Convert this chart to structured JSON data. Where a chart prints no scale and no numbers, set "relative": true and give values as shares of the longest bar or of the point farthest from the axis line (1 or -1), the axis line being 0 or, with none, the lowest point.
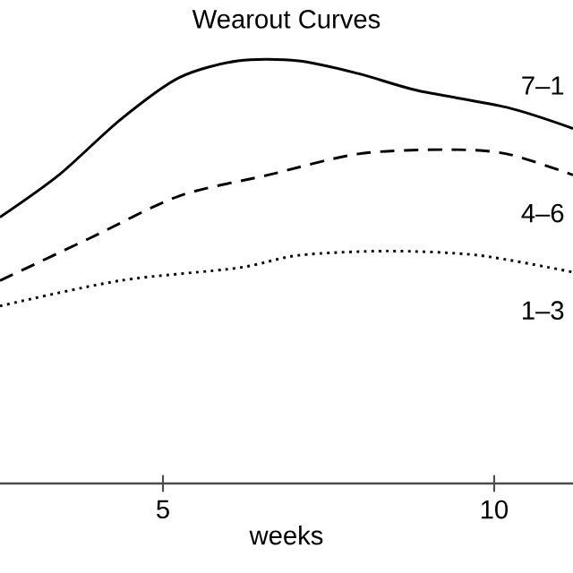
{
  "chart_data": {
    "type": "line",
    "title": "Wearout Curves",
    "xlabel": "weeks",
    "relative": true,
    "xlim": [
      2.54,
      11.19
    ],
    "xticks": [
      5,
      10
    ],
    "series": [
      {
        "name": "7–1",
        "color": "#000000",
        "line_style": "solid",
        "x": [
          2.54,
          3.43,
          4.35,
          5.24,
          6.13,
          7.05,
          7.95,
          8.84,
          10.19,
          11.19
        ],
        "values": [
          0.63,
          0.73,
          0.86,
          0.96,
          1.0,
          1.0,
          0.97,
          0.93,
          0.89,
          0.84
        ]
      },
      {
        "name": "4–6",
        "color": "#000000",
        "line_style": "dashed",
        "x": [
          2.54,
          3.89,
          5.24,
          6.59,
          7.95,
          9.3,
          10.19,
          11.19
        ],
        "values": [
          0.48,
          0.58,
          0.68,
          0.73,
          0.78,
          0.79,
          0.78,
          0.73
        ]
      },
      {
        "name": "1–3",
        "color": "#000000",
        "line_style": "dotted",
        "x": [
          2.54,
          4.35,
          6.13,
          7.05,
          8.4,
          9.76,
          11.19
        ],
        "values": [
          0.42,
          0.48,
          0.51,
          0.54,
          0.55,
          0.54,
          0.5
        ]
      }
    ]
  }
}
